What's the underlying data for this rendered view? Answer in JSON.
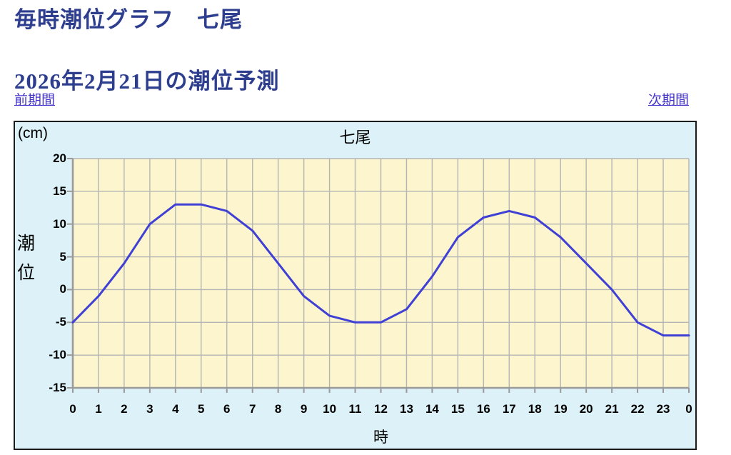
{
  "page": {
    "title_line1": "毎時潮位グラフ　七尾",
    "title_line2": "2026年2月21日の潮位予測",
    "prev_link": "前期間",
    "next_link": "次期間"
  },
  "chart": {
    "unit_label": "(cm)",
    "title": "七尾",
    "y_axis_label": "潮位",
    "x_axis_label": "時"
  },
  "chart_data": {
    "type": "line",
    "title": "七尾",
    "xlabel": "時",
    "ylabel": "潮位",
    "unit": "(cm)",
    "x": [
      0,
      1,
      2,
      3,
      4,
      5,
      6,
      7,
      8,
      9,
      10,
      11,
      12,
      13,
      14,
      15,
      16,
      17,
      18,
      19,
      20,
      21,
      22,
      23,
      24
    ],
    "x_tick_labels": [
      "0",
      "1",
      "2",
      "3",
      "4",
      "5",
      "6",
      "7",
      "8",
      "9",
      "10",
      "11",
      "12",
      "13",
      "14",
      "15",
      "16",
      "17",
      "18",
      "19",
      "20",
      "21",
      "22",
      "23",
      "0"
    ],
    "values": [
      -5,
      -1,
      4,
      10,
      13,
      13,
      12,
      9,
      4,
      -1,
      -4,
      -5,
      -5,
      -3,
      2,
      8,
      11,
      12,
      11,
      8,
      4,
      0,
      -5,
      -7,
      -7
    ],
    "y_ticks": [
      20,
      15,
      10,
      5,
      0,
      -5,
      -10,
      -15
    ],
    "ylim": [
      -15,
      20
    ],
    "grid": true,
    "legend": "none",
    "colors": {
      "line": "#4040d5",
      "plot_bg": "#fcf5cd",
      "panel_bg": "#ddf2f8",
      "gridline": "#b5b5b5",
      "axis": "#9b9b9b",
      "title_text": "#2e3e8f",
      "link": "#4434ca"
    }
  }
}
